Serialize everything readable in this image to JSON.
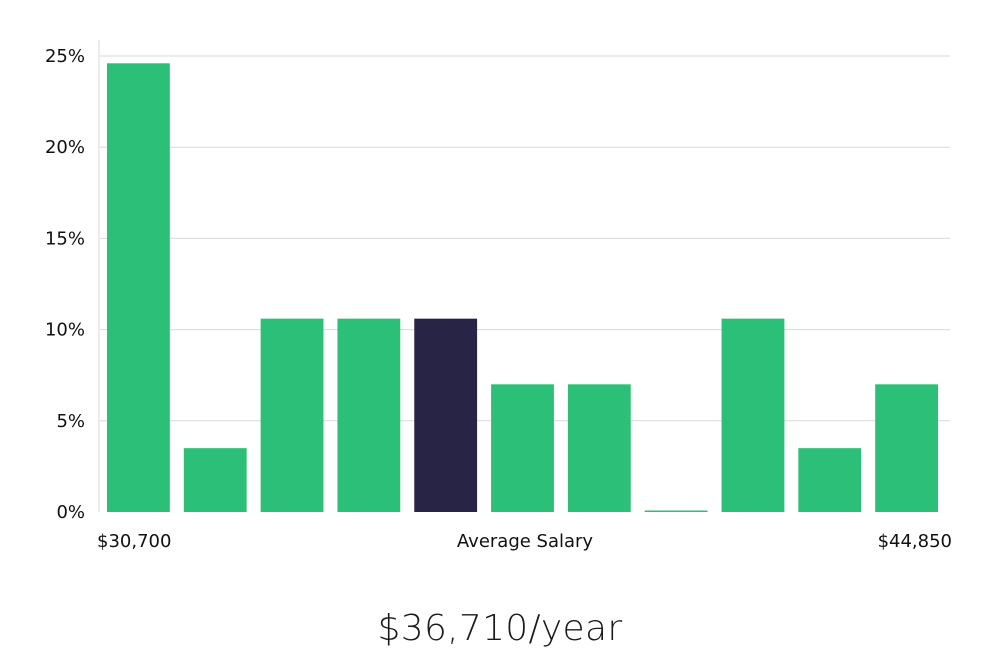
{
  "chart_data": {
    "type": "bar",
    "y_format": "percent",
    "yticks": [
      0,
      5,
      10,
      15,
      20,
      25
    ],
    "ylim": [
      0,
      25
    ],
    "grid": true,
    "values": [
      24.6,
      3.5,
      10.6,
      10.6,
      10.6,
      7.0,
      7.0,
      0.0,
      10.6,
      3.5,
      7.0
    ],
    "highlight_index": 4,
    "colors": {
      "bar": "#2bbf77",
      "highlight": "#282445",
      "grid": "#d9d9d9",
      "axis": "#d9d9d9"
    },
    "x_min_label": "$30,700",
    "x_mid_label": "Average Salary",
    "x_max_label": "$44,850"
  },
  "headline": "$36,710/year"
}
